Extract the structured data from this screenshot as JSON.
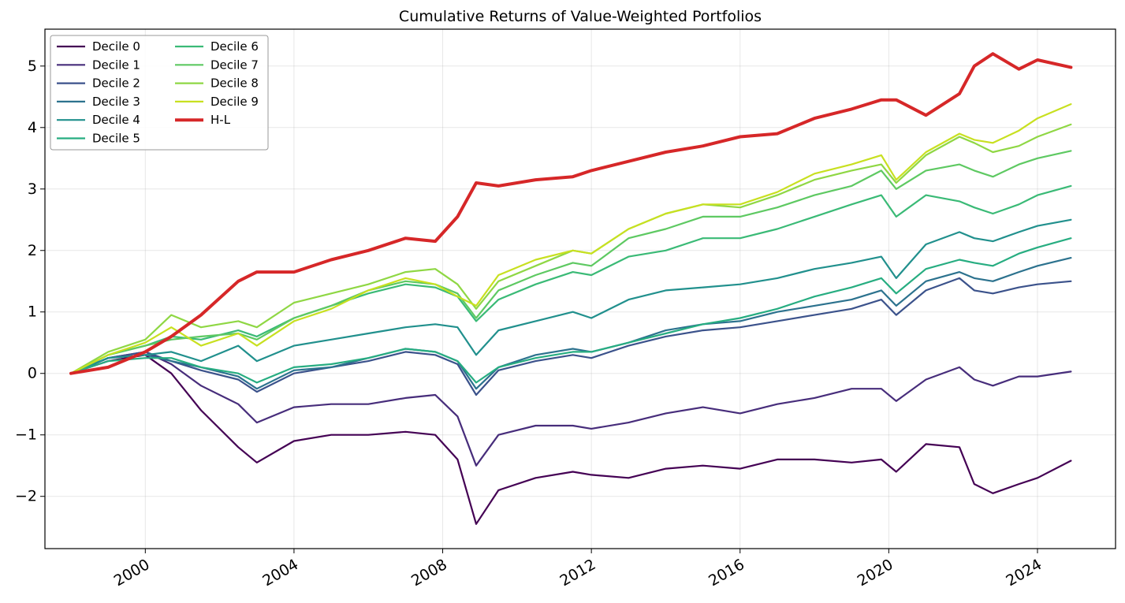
{
  "chart_data": {
    "type": "line",
    "title": "Cumulative Returns of Value-Weighted Portfolios",
    "xlabel": "",
    "ylabel": "",
    "xlim": [
      1997.3,
      2026.1
    ],
    "ylim": [
      -2.85,
      5.6
    ],
    "x_ticks": [
      2000,
      2004,
      2008,
      2012,
      2016,
      2020,
      2024
    ],
    "x_tick_labels": [
      "2000",
      "2004",
      "2008",
      "2012",
      "2016",
      "2020",
      "2024"
    ],
    "y_ticks": [
      -2,
      -1,
      0,
      1,
      2,
      3,
      4,
      5
    ],
    "y_tick_labels": [
      "−2",
      "−1",
      "0",
      "1",
      "2",
      "3",
      "4",
      "5"
    ],
    "grid": true,
    "legend_position": "top-left",
    "legend_columns": 2,
    "x": [
      1998.0,
      1999.0,
      2000.0,
      2000.7,
      2001.5,
      2002.5,
      2003.0,
      2004.0,
      2005.0,
      2006.0,
      2007.0,
      2007.8,
      2008.4,
      2008.9,
      2009.5,
      2010.5,
      2011.5,
      2012.0,
      2013.0,
      2014.0,
      2015.0,
      2016.0,
      2017.0,
      2018.0,
      2019.0,
      2019.8,
      2020.2,
      2021.0,
      2021.9,
      2022.3,
      2022.8,
      2023.5,
      2024.0,
      2024.9
    ],
    "series": [
      {
        "name": "Decile 0",
        "color": "#440154",
        "width": 2.2,
        "values": [
          0.0,
          0.2,
          0.3,
          0.0,
          -0.6,
          -1.2,
          -1.45,
          -1.1,
          -1.0,
          -1.0,
          -0.95,
          -1.0,
          -1.4,
          -2.45,
          -1.9,
          -1.7,
          -1.6,
          -1.65,
          -1.7,
          -1.55,
          -1.5,
          -1.55,
          -1.4,
          -1.4,
          -1.45,
          -1.4,
          -1.6,
          -1.15,
          -1.2,
          -1.8,
          -1.95,
          -1.8,
          -1.7,
          -1.42
        ]
      },
      {
        "name": "Decile 1",
        "color": "#472d7b",
        "width": 2.2,
        "values": [
          0.0,
          0.25,
          0.35,
          0.15,
          -0.2,
          -0.5,
          -0.8,
          -0.55,
          -0.5,
          -0.5,
          -0.4,
          -0.35,
          -0.7,
          -1.5,
          -1.0,
          -0.85,
          -0.85,
          -0.9,
          -0.8,
          -0.65,
          -0.55,
          -0.65,
          -0.5,
          -0.4,
          -0.25,
          -0.25,
          -0.45,
          -0.1,
          0.1,
          -0.1,
          -0.2,
          -0.05,
          -0.05,
          0.03
        ]
      },
      {
        "name": "Decile 2",
        "color": "#3b528b",
        "width": 2.2,
        "values": [
          0.0,
          0.25,
          0.35,
          0.2,
          0.05,
          -0.1,
          -0.3,
          0.0,
          0.1,
          0.2,
          0.35,
          0.3,
          0.15,
          -0.35,
          0.05,
          0.2,
          0.3,
          0.25,
          0.45,
          0.6,
          0.7,
          0.75,
          0.85,
          0.95,
          1.05,
          1.2,
          0.95,
          1.35,
          1.55,
          1.35,
          1.3,
          1.4,
          1.45,
          1.5
        ]
      },
      {
        "name": "Decile 3",
        "color": "#2c728e",
        "width": 2.2,
        "values": [
          0.0,
          0.25,
          0.3,
          0.2,
          0.1,
          -0.05,
          -0.25,
          0.05,
          0.1,
          0.25,
          0.4,
          0.35,
          0.2,
          -0.25,
          0.1,
          0.3,
          0.4,
          0.35,
          0.5,
          0.7,
          0.8,
          0.85,
          1.0,
          1.1,
          1.2,
          1.35,
          1.1,
          1.5,
          1.65,
          1.55,
          1.5,
          1.65,
          1.75,
          1.88
        ]
      },
      {
        "name": "Decile 4",
        "color": "#21908d",
        "width": 2.2,
        "values": [
          0.0,
          0.25,
          0.3,
          0.35,
          0.2,
          0.45,
          0.2,
          0.45,
          0.55,
          0.65,
          0.75,
          0.8,
          0.75,
          0.3,
          0.7,
          0.85,
          1.0,
          0.9,
          1.2,
          1.35,
          1.4,
          1.45,
          1.55,
          1.7,
          1.8,
          1.9,
          1.55,
          2.1,
          2.3,
          2.2,
          2.15,
          2.3,
          2.4,
          2.5
        ]
      },
      {
        "name": "Decile 5",
        "color": "#27ad81",
        "width": 2.2,
        "values": [
          0.0,
          0.2,
          0.25,
          0.25,
          0.1,
          0.0,
          -0.15,
          0.1,
          0.15,
          0.25,
          0.4,
          0.35,
          0.2,
          -0.15,
          0.1,
          0.25,
          0.35,
          0.35,
          0.5,
          0.65,
          0.8,
          0.9,
          1.05,
          1.25,
          1.4,
          1.55,
          1.3,
          1.7,
          1.85,
          1.8,
          1.75,
          1.95,
          2.05,
          2.2
        ]
      },
      {
        "name": "Decile 6",
        "color": "#3aba76",
        "width": 2.2,
        "values": [
          0.0,
          0.3,
          0.45,
          0.6,
          0.55,
          0.7,
          0.6,
          0.9,
          1.1,
          1.3,
          1.45,
          1.4,
          1.25,
          0.85,
          1.2,
          1.45,
          1.65,
          1.6,
          1.9,
          2.0,
          2.2,
          2.2,
          2.35,
          2.55,
          2.75,
          2.9,
          2.55,
          2.9,
          2.8,
          2.7,
          2.6,
          2.75,
          2.9,
          3.05
        ]
      },
      {
        "name": "Decile 7",
        "color": "#5ec962",
        "width": 2.2,
        "values": [
          0.0,
          0.3,
          0.45,
          0.55,
          0.6,
          0.65,
          0.55,
          0.9,
          1.1,
          1.35,
          1.5,
          1.45,
          1.3,
          0.9,
          1.35,
          1.6,
          1.8,
          1.75,
          2.2,
          2.35,
          2.55,
          2.55,
          2.7,
          2.9,
          3.05,
          3.3,
          3.0,
          3.3,
          3.4,
          3.3,
          3.2,
          3.4,
          3.5,
          3.62
        ]
      },
      {
        "name": "Decile 8",
        "color": "#8fd744",
        "width": 2.2,
        "values": [
          0.0,
          0.35,
          0.55,
          0.95,
          0.75,
          0.85,
          0.75,
          1.15,
          1.3,
          1.45,
          1.65,
          1.7,
          1.45,
          1.05,
          1.5,
          1.75,
          2.0,
          1.95,
          2.35,
          2.6,
          2.75,
          2.7,
          2.9,
          3.15,
          3.3,
          3.4,
          3.1,
          3.55,
          3.85,
          3.75,
          3.6,
          3.7,
          3.85,
          4.05
        ]
      },
      {
        "name": "Decile 9",
        "color": "#c8e020",
        "width": 2.2,
        "values": [
          0.0,
          0.3,
          0.5,
          0.75,
          0.45,
          0.65,
          0.45,
          0.85,
          1.05,
          1.35,
          1.55,
          1.45,
          1.25,
          1.1,
          1.6,
          1.85,
          2.0,
          1.95,
          2.35,
          2.6,
          2.75,
          2.75,
          2.95,
          3.25,
          3.4,
          3.55,
          3.15,
          3.6,
          3.9,
          3.8,
          3.75,
          3.95,
          4.15,
          4.38
        ]
      },
      {
        "name": "H-L",
        "color": "#d62728",
        "width": 4,
        "values": [
          0.0,
          0.1,
          0.35,
          0.6,
          0.95,
          1.5,
          1.65,
          1.65,
          1.85,
          2.0,
          2.2,
          2.15,
          2.55,
          3.1,
          3.05,
          3.15,
          3.2,
          3.3,
          3.45,
          3.6,
          3.7,
          3.85,
          3.9,
          4.15,
          4.3,
          4.45,
          4.45,
          4.2,
          4.55,
          5.0,
          5.2,
          4.95,
          5.1,
          4.98
        ]
      }
    ]
  }
}
